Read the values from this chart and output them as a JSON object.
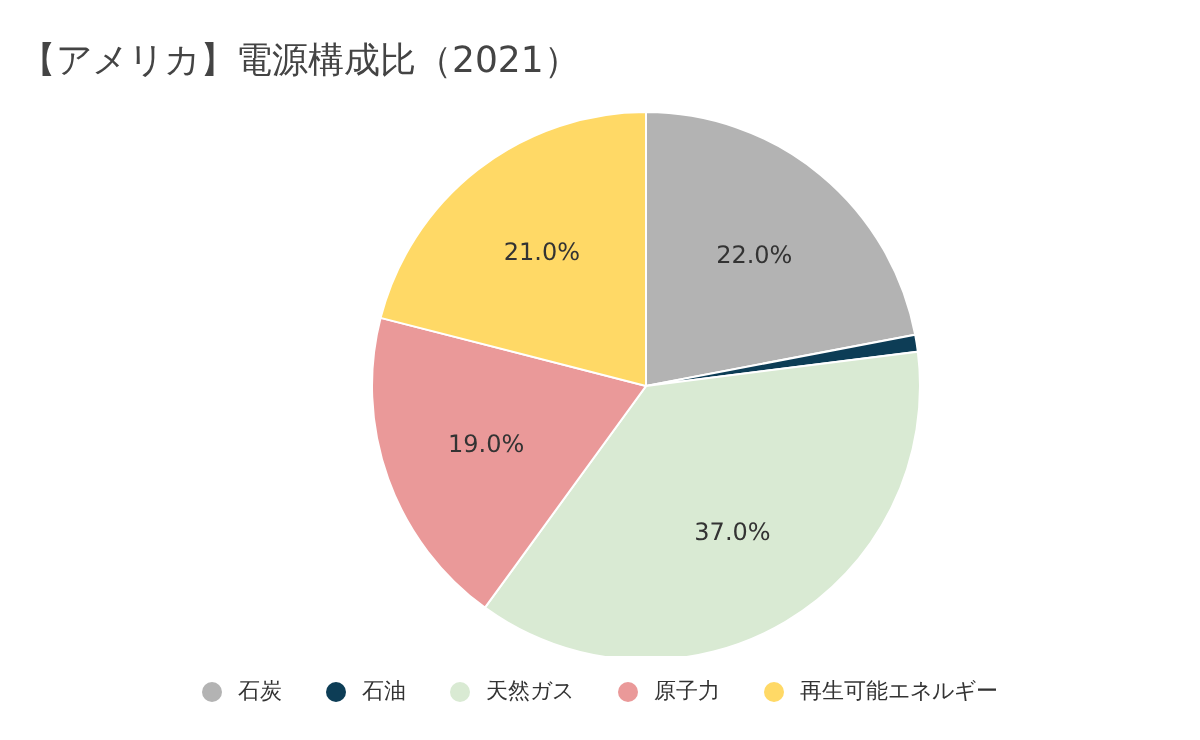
{
  "chart_data": {
    "type": "pie",
    "title": "【アメリカ】電源構成比（2021）",
    "categories": [
      "石炭",
      "石油",
      "天然ガス",
      "原子力",
      "再生可能エネルギー"
    ],
    "values": [
      22,
      1,
      37,
      19,
      21
    ],
    "colors": [
      "#b3b3b3",
      "#0d3d56",
      "#d9ead3",
      "#ea9999",
      "#ffd966"
    ],
    "value_labels": [
      "22.0%",
      null,
      "37.0%",
      "19.0%",
      "21.0%"
    ],
    "legend": "bottom"
  }
}
